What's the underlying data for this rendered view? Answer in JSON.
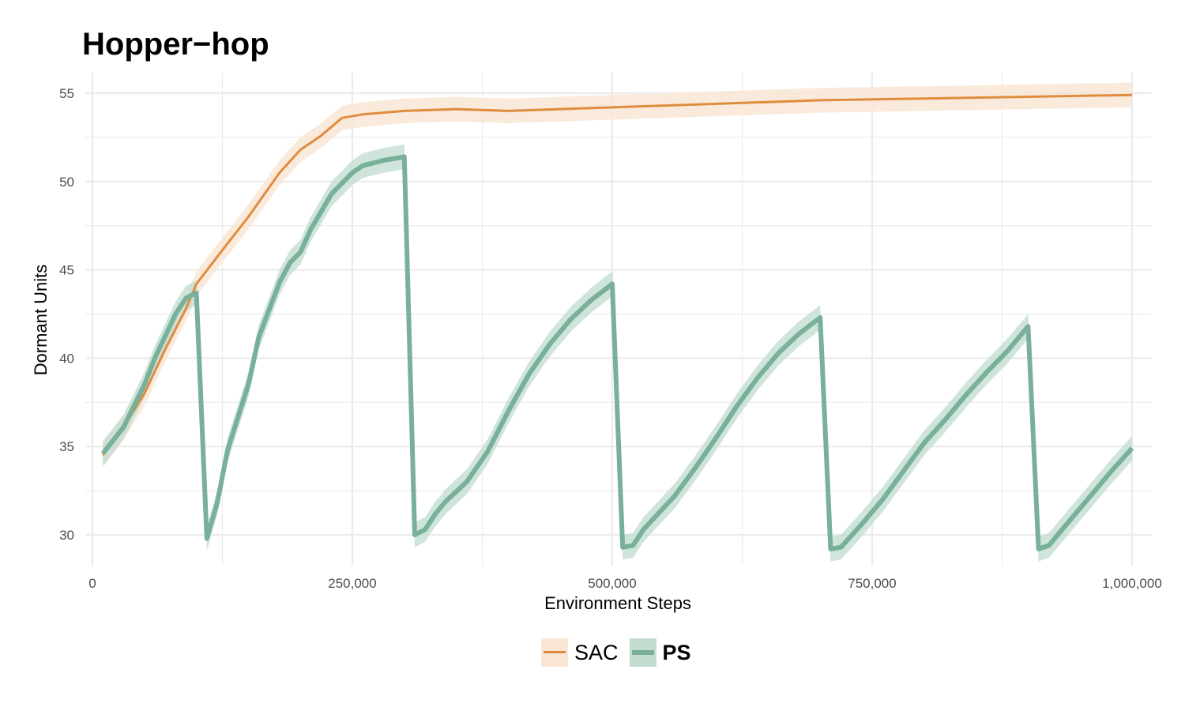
{
  "title": "Hopper−hop",
  "chart_data": {
    "type": "line",
    "title": "Hopper−hop",
    "xlabel": "Environment Steps",
    "ylabel": "Dormant Units",
    "xlim": [
      0,
      1000000
    ],
    "ylim": [
      29,
      56
    ],
    "xticks": [
      0,
      250000,
      500000,
      750000,
      1000000
    ],
    "xtick_labels": [
      "0",
      "250,000",
      "500,000",
      "750,000",
      "1,000,000"
    ],
    "yticks": [
      30,
      35,
      40,
      45,
      50,
      55
    ],
    "ytick_labels": [
      "30",
      "35",
      "40",
      "45",
      "50",
      "55"
    ],
    "grid": true,
    "legend_position": "bottom",
    "series": [
      {
        "name": "SAC",
        "color": "#E08C3E",
        "band_color": "#F9E6D5",
        "line_width": 3,
        "band": 0.7,
        "x": [
          10000,
          30000,
          50000,
          70000,
          90000,
          100000,
          130000,
          150000,
          180000,
          200000,
          220000,
          240000,
          260000,
          300000,
          350000,
          400000,
          500000,
          600000,
          700000,
          800000,
          900000,
          1000000
        ],
        "y": [
          34.5,
          36.1,
          38,
          40.5,
          42.8,
          44.2,
          46.5,
          48,
          50.5,
          51.8,
          52.6,
          53.6,
          53.8,
          54,
          54.1,
          54,
          54.2,
          54.4,
          54.6,
          54.7,
          54.8,
          54.9
        ]
      },
      {
        "name": "PS",
        "color": "#78B09A",
        "band_color": "#C3DDD1",
        "line_width": 6,
        "band": 0.7,
        "x": [
          10000,
          30000,
          50000,
          60000,
          80000,
          90000,
          100000,
          110000,
          120000,
          130000,
          150000,
          160000,
          180000,
          190000,
          200000,
          210000,
          230000,
          250000,
          260000,
          280000,
          300000,
          310000,
          320000,
          330000,
          340000,
          360000,
          380000,
          400000,
          420000,
          440000,
          460000,
          480000,
          500000,
          510000,
          520000,
          530000,
          560000,
          580000,
          600000,
          620000,
          640000,
          660000,
          680000,
          700000,
          710000,
          720000,
          740000,
          760000,
          780000,
          800000,
          820000,
          840000,
          860000,
          880000,
          900000,
          910000,
          920000,
          940000,
          960000,
          980000,
          1000000
        ],
        "y": [
          34.6,
          36.1,
          38.5,
          40,
          42.5,
          43.4,
          43.7,
          29.8,
          31.8,
          34.8,
          38.5,
          41.2,
          44.3,
          45.4,
          46,
          47.3,
          49.3,
          50.5,
          50.9,
          51.2,
          51.4,
          30,
          30.3,
          31.2,
          31.9,
          33,
          34.7,
          37,
          39.1,
          40.8,
          42.2,
          43.3,
          44.2,
          29.3,
          29.4,
          30.3,
          32.2,
          33.8,
          35.5,
          37.3,
          38.9,
          40.3,
          41.4,
          42.3,
          29.2,
          29.3,
          30.6,
          32,
          33.6,
          35.2,
          36.5,
          37.9,
          39.2,
          40.4,
          41.8,
          29.2,
          29.4,
          30.8,
          32.2,
          33.6,
          34.9
        ]
      }
    ]
  },
  "legend": {
    "items": [
      {
        "label": "SAC"
      },
      {
        "label": "PS"
      }
    ]
  }
}
